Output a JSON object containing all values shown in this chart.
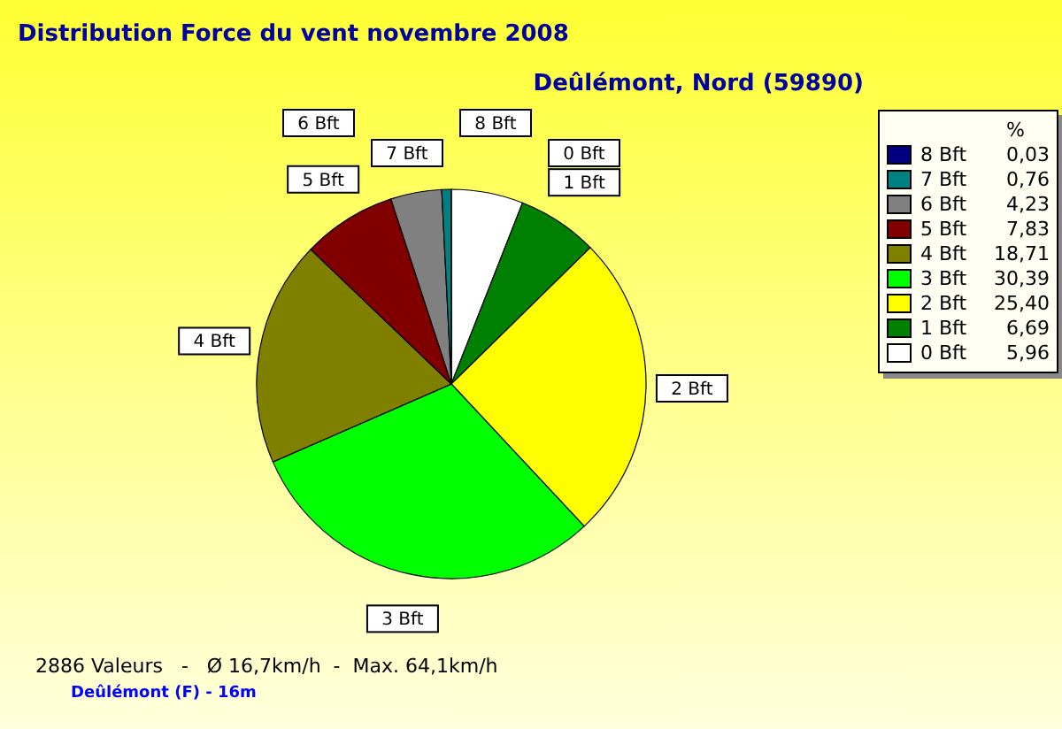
{
  "chart_data": {
    "type": "pie",
    "title": "Distribution Force du vent  novembre 2008",
    "subtitle": "Deûlémont, Nord (59890)",
    "categories": [
      "0 Bft",
      "1 Bft",
      "2 Bft",
      "3 Bft",
      "4 Bft",
      "5 Bft",
      "6 Bft",
      "7 Bft",
      "8 Bft"
    ],
    "values": [
      5.96,
      6.69,
      25.4,
      30.39,
      18.71,
      7.83,
      4.23,
      0.76,
      0.03
    ],
    "value_labels": [
      "5,96",
      "6,69",
      "25,40",
      "30,39",
      "18,71",
      "7,83",
      "4,23",
      "0,76",
      "0,03"
    ],
    "colors": [
      "#ffffff",
      "#008000",
      "#ffff00",
      "#00ff00",
      "#808000",
      "#800000",
      "#808080",
      "#008080",
      "#000080"
    ],
    "legend": "right",
    "legend_title": "%",
    "annotations": [
      "2886 Valeurs   -   Ø 16,7km/h  -  Max. 64,1km/h",
      "Deûlémont (F) - 16m"
    ]
  }
}
